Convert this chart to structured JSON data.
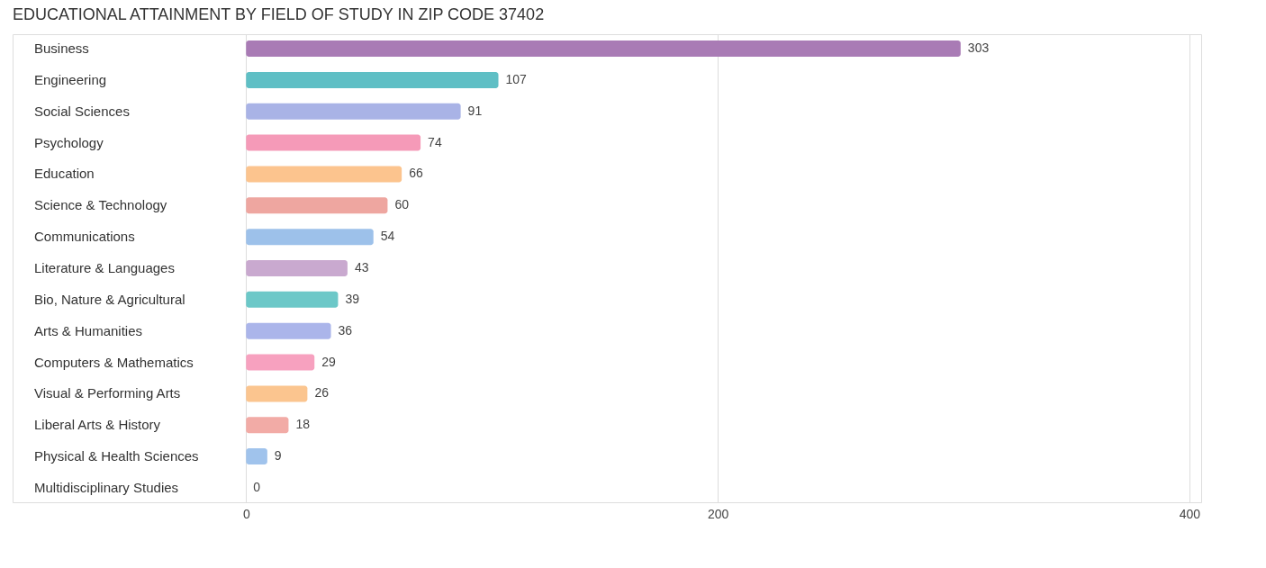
{
  "chart_data": {
    "type": "bar",
    "orientation": "horizontal",
    "title": "EDUCATIONAL ATTAINMENT BY FIELD OF STUDY IN ZIP CODE 37402",
    "categories": [
      "Business",
      "Engineering",
      "Social Sciences",
      "Psychology",
      "Education",
      "Science & Technology",
      "Communications",
      "Literature & Languages",
      "Bio, Nature & Agricultural",
      "Arts & Humanities",
      "Computers & Mathematics",
      "Visual & Performing Arts",
      "Liberal Arts & History",
      "Physical & Health Sciences",
      "Multidisciplinary Studies"
    ],
    "values": [
      303,
      107,
      91,
      74,
      66,
      60,
      54,
      43,
      39,
      36,
      29,
      26,
      18,
      9,
      0
    ],
    "colors": [
      "#a97bb5",
      "#5fbfc5",
      "#a9b3e6",
      "#f59ab8",
      "#fcc48e",
      "#eea6a0",
      "#9dc1ea",
      "#c9a9cf",
      "#6cc8c8",
      "#abb5ea",
      "#f7a1bf",
      "#fbc58f",
      "#f2aba6",
      "#a0c3ec",
      "#cdb0d4"
    ],
    "xlim": [
      -99,
      405
    ],
    "xticks": [
      0,
      200,
      400
    ],
    "grid": "x",
    "data_labels": true
  }
}
